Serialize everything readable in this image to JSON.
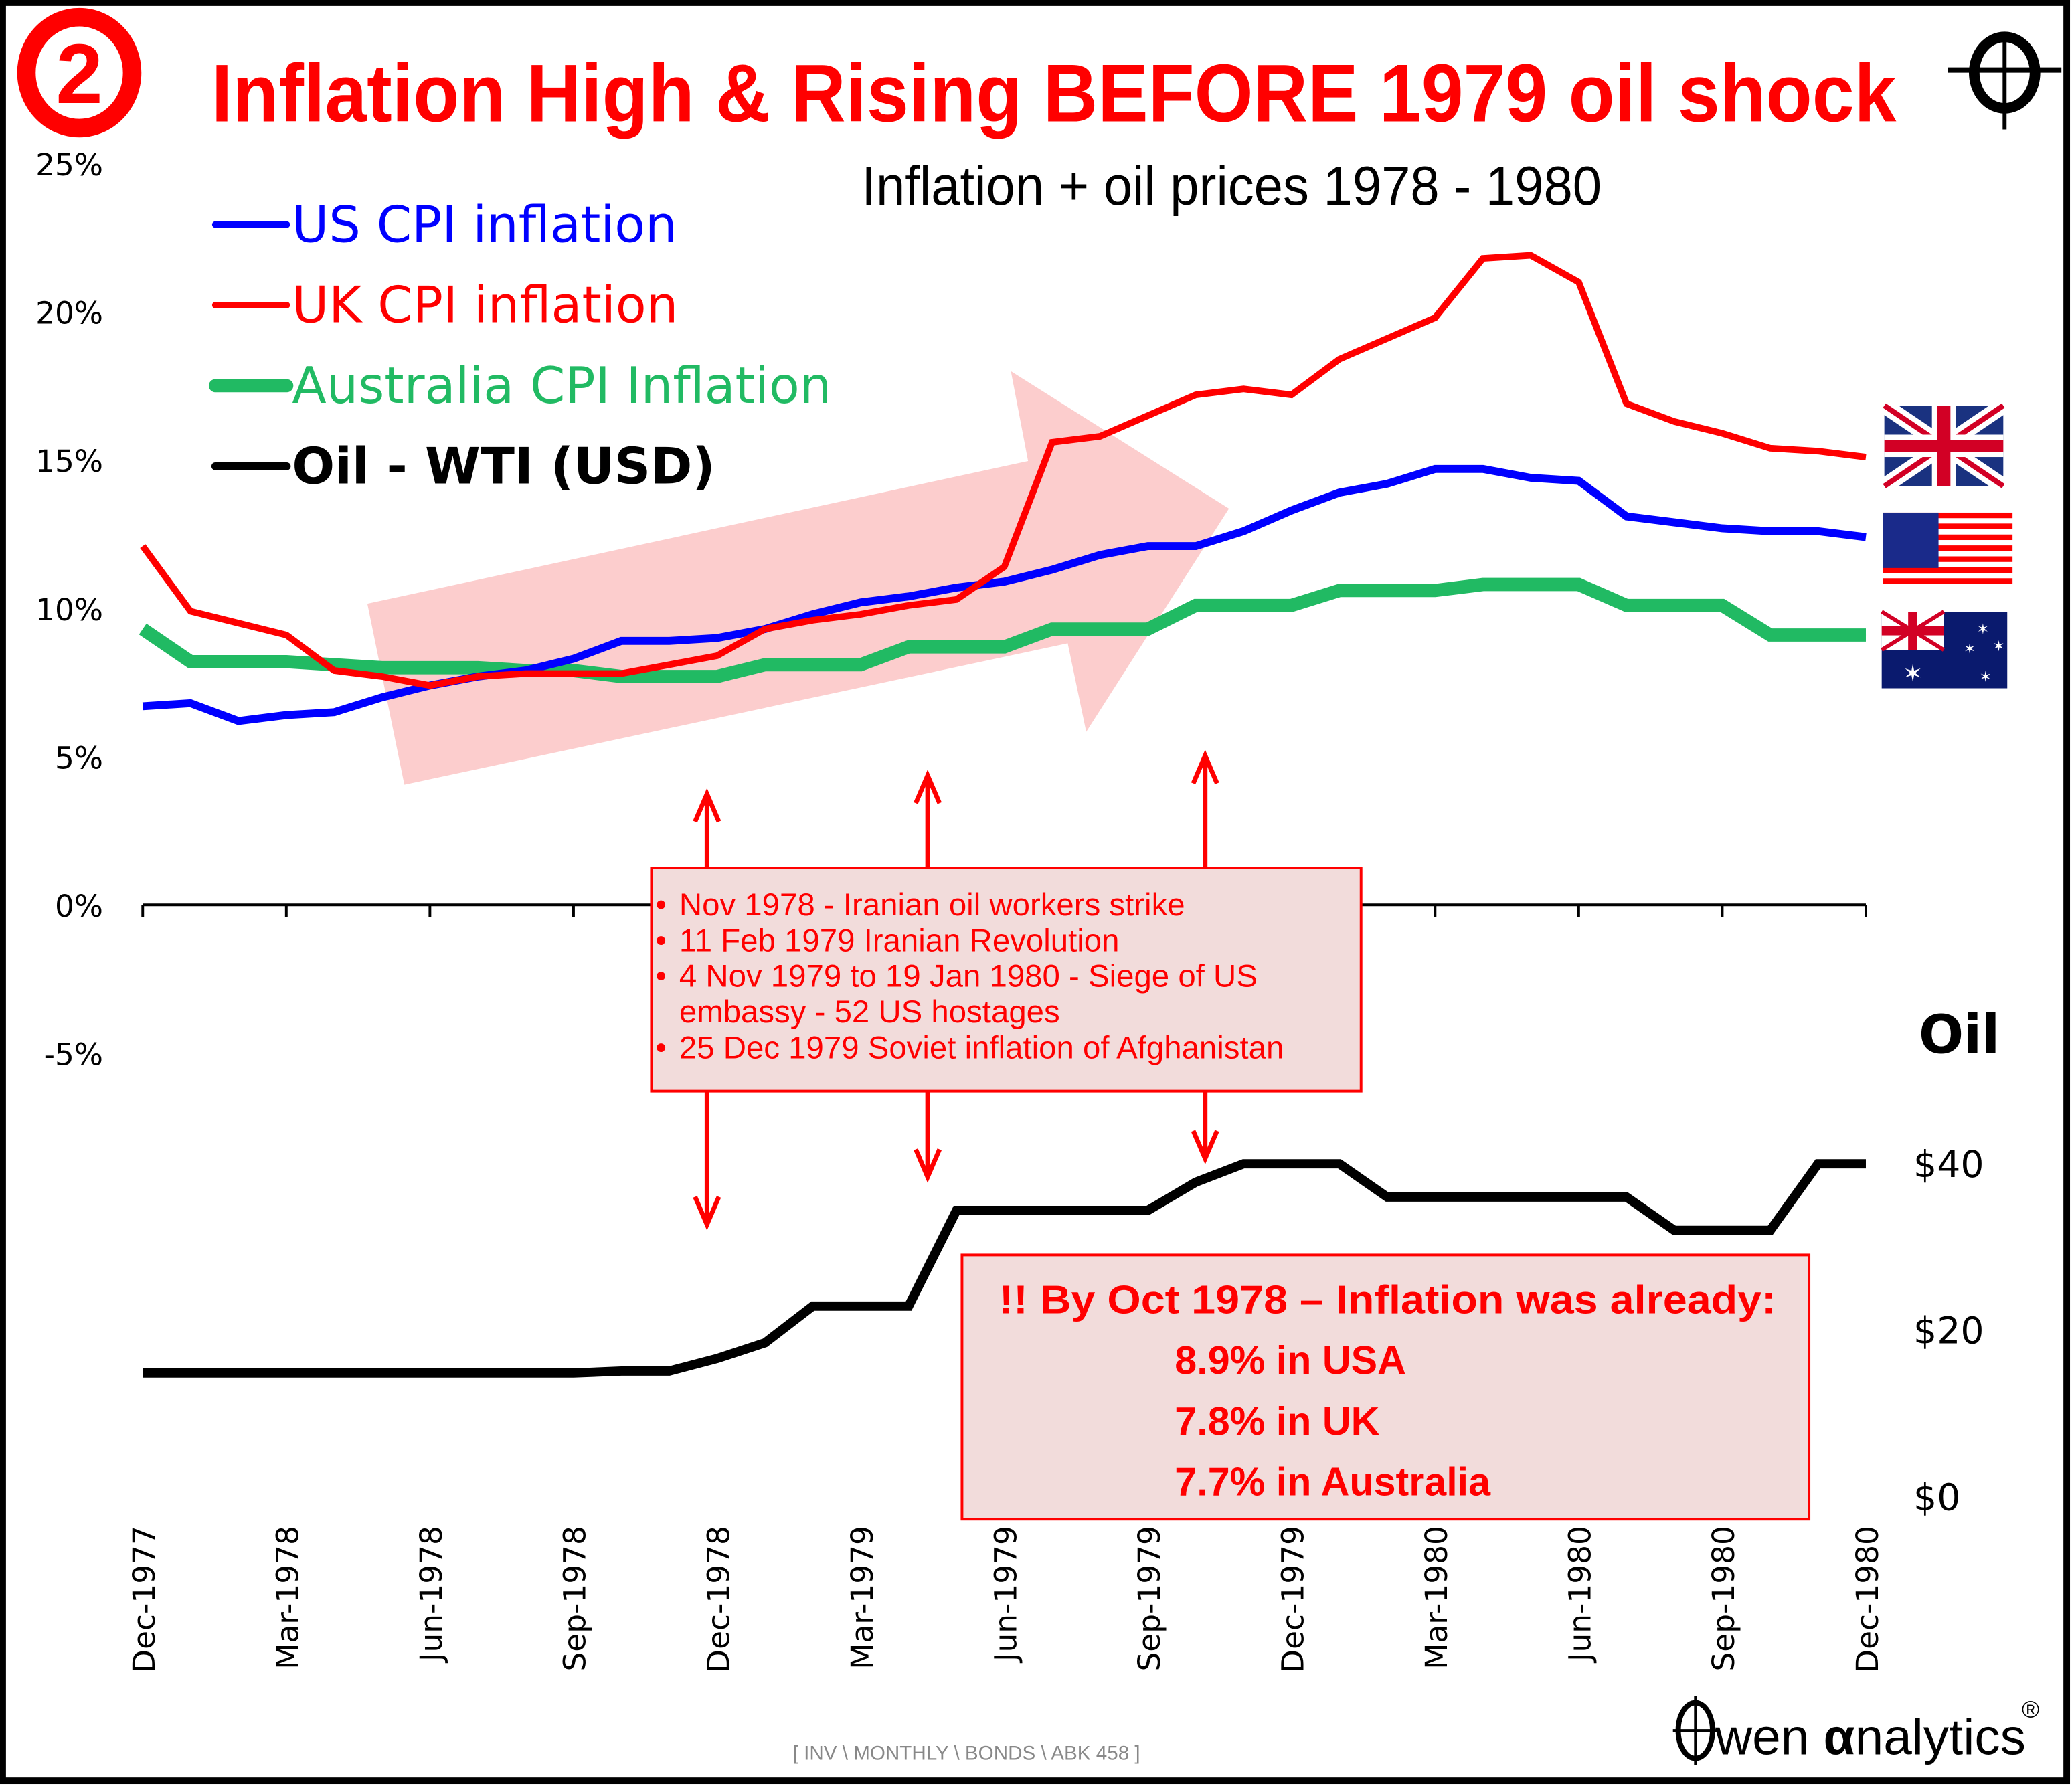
{
  "header": {
    "badge_number": "2",
    "title": "Inflation High & Rising BEFORE 1979 oil shock",
    "subtitle": "Inflation + oil prices 1978 - 1980",
    "corner_icon": "crosshair-icon"
  },
  "chart_data": {
    "type": "line",
    "title": "Inflation High & Rising BEFORE 1979 oil shock",
    "subtitle": "Inflation + oil prices 1978 - 1980",
    "x": [
      "Dec-1977",
      "Jan-1978",
      "Feb-1978",
      "Mar-1978",
      "Apr-1978",
      "May-1978",
      "Jun-1978",
      "Jul-1978",
      "Aug-1978",
      "Sep-1978",
      "Oct-1978",
      "Nov-1978",
      "Dec-1978",
      "Jan-1979",
      "Feb-1979",
      "Mar-1979",
      "Apr-1979",
      "May-1979",
      "Jun-1979",
      "Jul-1979",
      "Aug-1979",
      "Sep-1979",
      "Oct-1979",
      "Nov-1979",
      "Dec-1979",
      "Jan-1980",
      "Feb-1980",
      "Mar-1980",
      "Apr-1980",
      "May-1980",
      "Jun-1980",
      "Jul-1980",
      "Aug-1980",
      "Sep-1980",
      "Oct-1980",
      "Nov-1980",
      "Dec-1980"
    ],
    "xtick_labels": [
      "Dec-1977",
      "Mar-1978",
      "Jun-1978",
      "Sep-1978",
      "Dec-1978",
      "Mar-1979",
      "Jun-1979",
      "Sep-1979",
      "Dec-1979",
      "Mar-1980",
      "Jun-1980",
      "Sep-1980",
      "Dec-1980"
    ],
    "left_axis": {
      "label": "",
      "ylim": [
        -5,
        25
      ],
      "ticks": [
        "25%",
        "20%",
        "15%",
        "10%",
        "5%",
        "0%",
        "-5%"
      ],
      "tick_values": [
        25,
        20,
        15,
        10,
        5,
        0,
        -5
      ]
    },
    "right_axis": {
      "label": "Oil",
      "ylim": [
        0,
        40
      ],
      "ticks": [
        "$40",
        "$20",
        "$0"
      ],
      "tick_values": [
        40,
        20,
        0
      ]
    },
    "series": [
      {
        "name": "US CPI inflation",
        "axis": "left",
        "color": "#0000ff",
        "values": [
          6.7,
          6.8,
          6.2,
          6.4,
          6.5,
          7.0,
          7.4,
          7.7,
          7.9,
          8.3,
          8.9,
          8.9,
          9.0,
          9.3,
          9.8,
          10.2,
          10.4,
          10.7,
          10.9,
          11.3,
          11.8,
          12.1,
          12.1,
          12.6,
          13.3,
          13.9,
          14.2,
          14.7,
          14.7,
          14.4,
          14.3,
          13.1,
          12.9,
          12.7,
          12.6,
          12.6,
          12.4
        ]
      },
      {
        "name": "UK CPI inflation",
        "axis": "left",
        "color": "#ff0000",
        "values": [
          12.1,
          9.9,
          9.5,
          9.1,
          7.9,
          7.7,
          7.4,
          7.7,
          7.8,
          7.8,
          7.8,
          8.1,
          8.4,
          9.3,
          9.6,
          9.8,
          10.1,
          10.3,
          11.4,
          15.6,
          15.8,
          16.5,
          17.2,
          17.4,
          17.2,
          18.4,
          19.1,
          19.8,
          21.8,
          21.9,
          21.0,
          16.9,
          16.3,
          15.9,
          15.4,
          15.3,
          15.1
        ]
      },
      {
        "name": "Australia CPI Inflation",
        "axis": "left",
        "color": "#21ba63",
        "values": [
          9.3,
          8.2,
          8.2,
          8.2,
          8.1,
          8.0,
          8.0,
          8.0,
          7.9,
          7.9,
          7.7,
          7.7,
          7.7,
          8.1,
          8.1,
          8.1,
          8.7,
          8.7,
          8.7,
          9.3,
          9.3,
          9.3,
          10.1,
          10.1,
          10.1,
          10.6,
          10.6,
          10.6,
          10.8,
          10.8,
          10.8,
          10.1,
          10.1,
          10.1,
          9.1,
          9.1,
          9.1
        ]
      },
      {
        "name": "Oil - WTI (USD)",
        "axis": "right",
        "color": "#000000",
        "values": [
          14.85,
          14.85,
          14.85,
          14.85,
          14.85,
          14.85,
          14.85,
          14.85,
          14.85,
          14.85,
          15.1,
          15.1,
          16.6,
          18.5,
          22.9,
          22.9,
          22.9,
          34.4,
          34.4,
          34.4,
          34.4,
          34.4,
          37.8,
          40.0,
          40.0,
          40.0,
          36.0,
          36.0,
          36.0,
          36.0,
          36.0,
          36.0,
          32.0,
          32.0,
          32.0,
          40.0,
          40.0
        ]
      }
    ],
    "legend": "top-left",
    "grid": false
  },
  "legend": [
    {
      "label": "US CPI inflation",
      "color": "#0000ff"
    },
    {
      "label": "UK CPI inflation",
      "color": "#ff0000"
    },
    {
      "label": "Australia CPI Inflation",
      "color": "#21ba63"
    },
    {
      "label": "Oil - WTI (USD)",
      "color": "#000000"
    }
  ],
  "flags": [
    {
      "name": "uk-flag-icon",
      "country": "United Kingdom"
    },
    {
      "name": "us-flag-icon",
      "country": "United States"
    },
    {
      "name": "australia-flag-icon",
      "country": "Australia"
    }
  ],
  "annotations": {
    "events_box": [
      "Nov 1978 - Iranian oil workers strike",
      "11 Feb 1979 Iranian Revolution",
      "4 Nov 1979 to 19 Jan 1980 - Siege of US",
      "embassy - 52 US hostages",
      "25 Dec 1979 Soviet inflation of Afghanistan"
    ],
    "event_arrows_at": [
      "Nov-1978",
      "Apr-1979",
      "Oct-1979"
    ],
    "trend_arrow": "rising inflation trend",
    "callout": {
      "headline": "!! By Oct 1978 – Inflation was already:",
      "lines": [
        "8.9% in USA",
        "7.8% in UK",
        "7.7% in Australia"
      ]
    }
  },
  "footer": {
    "reference": "[ INV \\ MONTHLY \\ BONDS \\ ABK 458 ]",
    "logo_text_1": "wen ",
    "logo_alpha": "α",
    "logo_text_2": "nalytics",
    "registered": "®"
  },
  "colors": {
    "title_red": "#ff0000",
    "callout_fill": "#f2dcdb",
    "trend_arrow_fill": "#fbc4c4"
  }
}
